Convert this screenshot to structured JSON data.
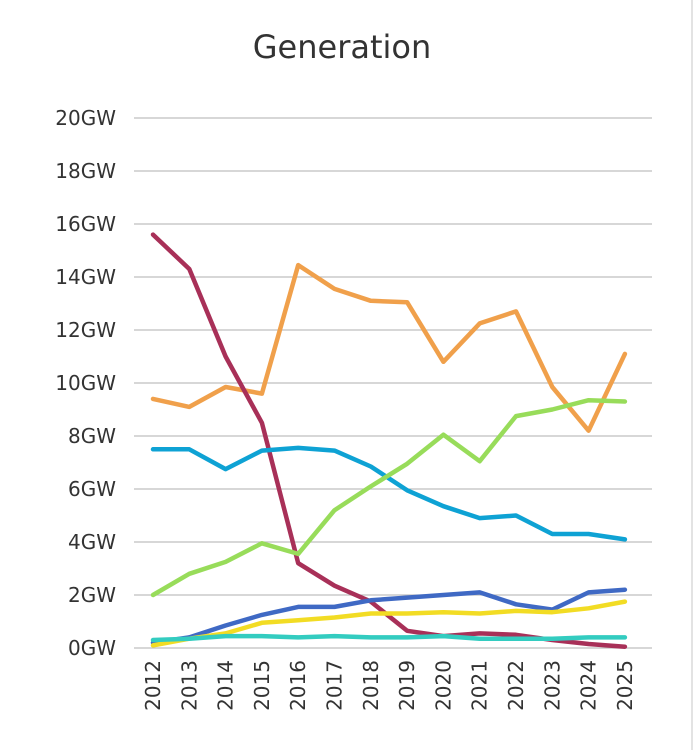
{
  "chart_data": {
    "type": "line",
    "title": "Generation",
    "xlabel": "",
    "ylabel": "",
    "ylim": [
      0,
      20
    ],
    "y_ticks": [
      "0GW",
      "2GW",
      "4GW",
      "6GW",
      "8GW",
      "10GW",
      "12GW",
      "14GW",
      "16GW",
      "18GW",
      "20GW"
    ],
    "x": [
      "2012",
      "2013",
      "2014",
      "2015",
      "2016",
      "2017",
      "2018",
      "2019",
      "2020",
      "2021",
      "2022",
      "2023",
      "2024",
      "2025"
    ],
    "grid": true,
    "legend": "none",
    "series": [
      {
        "name": "series-orange",
        "color": "#F0A04B",
        "values": [
          9.4,
          9.1,
          9.85,
          9.6,
          14.45,
          13.55,
          13.1,
          13.05,
          10.8,
          12.25,
          12.7,
          9.85,
          8.2,
          11.1
        ]
      },
      {
        "name": "series-maroon",
        "color": "#A83058",
        "values": [
          15.6,
          14.3,
          11.0,
          8.5,
          3.2,
          2.35,
          1.75,
          0.65,
          0.45,
          0.55,
          0.5,
          0.3,
          0.15,
          0.05
        ]
      },
      {
        "name": "series-cyan",
        "color": "#0EA2D4",
        "values": [
          7.5,
          7.5,
          6.75,
          7.45,
          7.55,
          7.45,
          6.85,
          5.95,
          5.35,
          4.9,
          5.0,
          4.3,
          4.3,
          4.1
        ]
      },
      {
        "name": "series-green",
        "color": "#98DC5A",
        "values": [
          2.0,
          2.8,
          3.25,
          3.95,
          3.55,
          5.2,
          6.1,
          6.95,
          8.05,
          7.05,
          8.75,
          9.0,
          9.35,
          9.3
        ]
      },
      {
        "name": "series-blue",
        "color": "#3F69C4",
        "values": [
          0.2,
          0.4,
          0.85,
          1.25,
          1.55,
          1.55,
          1.8,
          1.9,
          2.0,
          2.1,
          1.65,
          1.45,
          2.1,
          2.2
        ]
      },
      {
        "name": "series-yellow",
        "color": "#F2DC24",
        "values": [
          0.1,
          0.35,
          0.55,
          0.95,
          1.05,
          1.15,
          1.3,
          1.3,
          1.35,
          1.3,
          1.4,
          1.35,
          1.5,
          1.75
        ]
      },
      {
        "name": "series-teal",
        "color": "#33CCC0",
        "values": [
          0.3,
          0.35,
          0.45,
          0.45,
          0.4,
          0.45,
          0.4,
          0.4,
          0.45,
          0.35,
          0.35,
          0.35,
          0.4,
          0.4
        ]
      }
    ],
    "gridline_color": "#BFBFBF"
  }
}
